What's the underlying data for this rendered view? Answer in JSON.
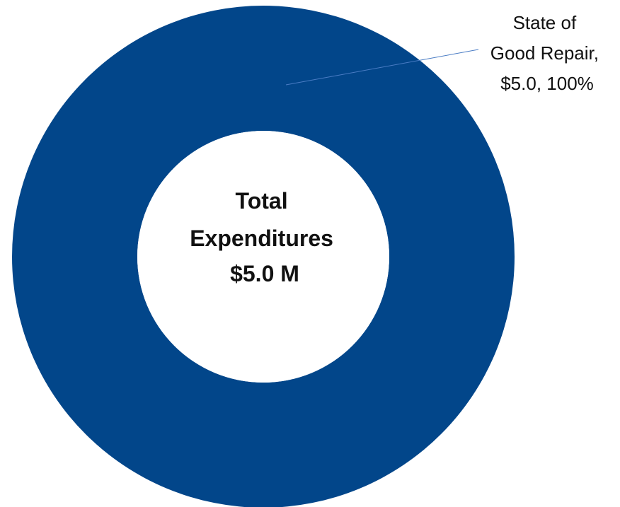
{
  "chart_data": {
    "type": "pie",
    "variant": "donut",
    "slices": [
      {
        "name": "State of Good Repair",
        "value": 5.0,
        "percent": 100,
        "color": "#02468A",
        "label_lines": [
          "State of",
          "Good Repair,",
          "$5.0, 100%"
        ]
      }
    ],
    "center_label": {
      "lines": [
        "Total",
        "Expenditures",
        "$5.0 M"
      ]
    },
    "legend": "none",
    "leader_line_color": "#4A7CC4",
    "label_color": "#111111"
  }
}
